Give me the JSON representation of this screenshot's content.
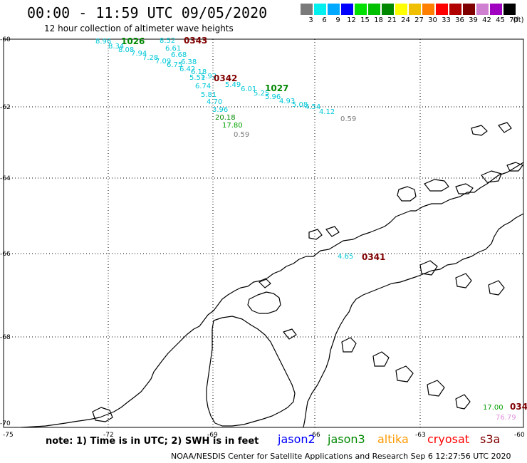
{
  "header": {
    "title": "00:00 - 11:59 UTC 09/05/2020",
    "subtitle": "12 hour collection of altimeter wave heights"
  },
  "scale": {
    "unit": "(ft)",
    "bins": [
      {
        "label": "3",
        "color": "#7a7a7a"
      },
      {
        "label": "6",
        "color": "#00f0f0"
      },
      {
        "label": "9",
        "color": "#00a8ff"
      },
      {
        "label": "12",
        "color": "#0000ff"
      },
      {
        "label": "15",
        "color": "#00e000"
      },
      {
        "label": "18",
        "color": "#00c000"
      },
      {
        "label": "21",
        "color": "#008800"
      },
      {
        "label": "24",
        "color": "#ffff00"
      },
      {
        "label": "27",
        "color": "#f0c000"
      },
      {
        "label": "30",
        "color": "#ff8000"
      },
      {
        "label": "33",
        "color": "#ff0000"
      },
      {
        "label": "36",
        "color": "#b00000"
      },
      {
        "label": "39",
        "color": "#800000"
      },
      {
        "label": "42",
        "color": "#d080d0"
      },
      {
        "label": "45",
        "color": "#a000c0"
      },
      {
        "label": "70",
        "color": "#000000"
      }
    ]
  },
  "axes": {
    "lat_labels": [
      "-60",
      "-62",
      "-64",
      "-66",
      "-68",
      "-70"
    ],
    "lon_labels": [
      "-75",
      "-72",
      "-69",
      "-66",
      "-63",
      "-60"
    ]
  },
  "observations": [
    {
      "text": "8.96",
      "color": "#00c8d8"
    },
    {
      "text": "1026",
      "color": "#008800",
      "kind": "time"
    },
    {
      "text": "8.52",
      "color": "#00c8d8"
    },
    {
      "text": "0343",
      "color": "#800000",
      "kind": "time"
    },
    {
      "text": "8.34",
      "color": "#00c8d8"
    },
    {
      "text": "6.61",
      "color": "#00c8d8"
    },
    {
      "text": "8.08",
      "color": "#00c8d8"
    },
    {
      "text": "7.94",
      "color": "#00c8d8"
    },
    {
      "text": "6.68",
      "color": "#00c8d8"
    },
    {
      "text": "7.28",
      "color": "#00c8d8"
    },
    {
      "text": "7.09",
      "color": "#00c8d8"
    },
    {
      "text": "6.38",
      "color": "#00c8d8"
    },
    {
      "text": "6.75",
      "color": "#00c8d8"
    },
    {
      "text": "6.42",
      "color": "#00c8d8"
    },
    {
      "text": "6.18",
      "color": "#00c8d8"
    },
    {
      "text": "5.92",
      "color": "#00c8d8"
    },
    {
      "text": "0342",
      "color": "#800000",
      "kind": "time"
    },
    {
      "text": "5.51",
      "color": "#00c8d8"
    },
    {
      "text": "5.49",
      "color": "#00c8d8"
    },
    {
      "text": "6.74",
      "color": "#00c8d8"
    },
    {
      "text": "6.01",
      "color": "#00c8d8"
    },
    {
      "text": "1027",
      "color": "#008800",
      "kind": "time"
    },
    {
      "text": "5.81",
      "color": "#00c8d8"
    },
    {
      "text": "5.25",
      "color": "#00c8d8"
    },
    {
      "text": "5.96",
      "color": "#00c8d8"
    },
    {
      "text": "4.70",
      "color": "#00c8d8"
    },
    {
      "text": "4.93",
      "color": "#00c8d8"
    },
    {
      "text": "5.08",
      "color": "#00c8d8"
    },
    {
      "text": "3.96",
      "color": "#00c8d8"
    },
    {
      "text": "4.54",
      "color": "#00c8d8"
    },
    {
      "text": "4.12",
      "color": "#00c8d8"
    },
    {
      "text": "0.59",
      "color": "#7a7a7a"
    },
    {
      "text": "20.18",
      "color": "#008800"
    },
    {
      "text": "17.80",
      "color": "#00a000"
    },
    {
      "text": "0.59",
      "color": "#7a7a7a"
    },
    {
      "text": "4.65",
      "color": "#00c8d8"
    },
    {
      "text": "0341",
      "color": "#800000",
      "kind": "time"
    },
    {
      "text": "17.00",
      "color": "#00a000"
    },
    {
      "text": "034",
      "color": "#800000",
      "kind": "time"
    },
    {
      "text": "76.79",
      "color": "#e090e0"
    }
  ],
  "footer": {
    "note": "note: 1) Time is in UTC; 2) SWH is in feet",
    "satellites": [
      {
        "name": "jason2",
        "color": "#0000ff"
      },
      {
        "name": "jason3",
        "color": "#008800"
      },
      {
        "name": "altika",
        "color": "#ff9900"
      },
      {
        "name": "cryosat",
        "color": "#ff0000"
      },
      {
        "name": "s3a",
        "color": "#800000"
      }
    ],
    "credit": "NOAA/NESDIS Center for Satellite Applications and Research   Sep  6 12:27:56 UTC 2020"
  }
}
